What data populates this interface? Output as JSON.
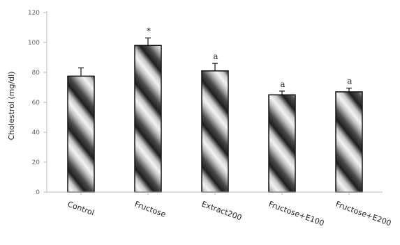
{
  "chart_data": {
    "type": "bar",
    "title": "",
    "xlabel": "",
    "ylabel": "Cholestrol (mg/dl)",
    "ylim": [
      0,
      120
    ],
    "yticks": [
      0,
      20,
      40,
      60,
      80,
      100,
      120
    ],
    "grid": false,
    "categories": [
      "Control",
      "Fructose",
      "Extract200",
      "Fructose+E100",
      "Fructose+E200"
    ],
    "values": [
      77.5,
      98,
      81,
      65,
      67
    ],
    "error": [
      5.5,
      5,
      5,
      2.5,
      2.5
    ],
    "significance": [
      "",
      "*",
      "a",
      "a",
      "a"
    ],
    "colors": {
      "bar_stroke": "#111111",
      "axis": "#bbbbbb"
    }
  }
}
